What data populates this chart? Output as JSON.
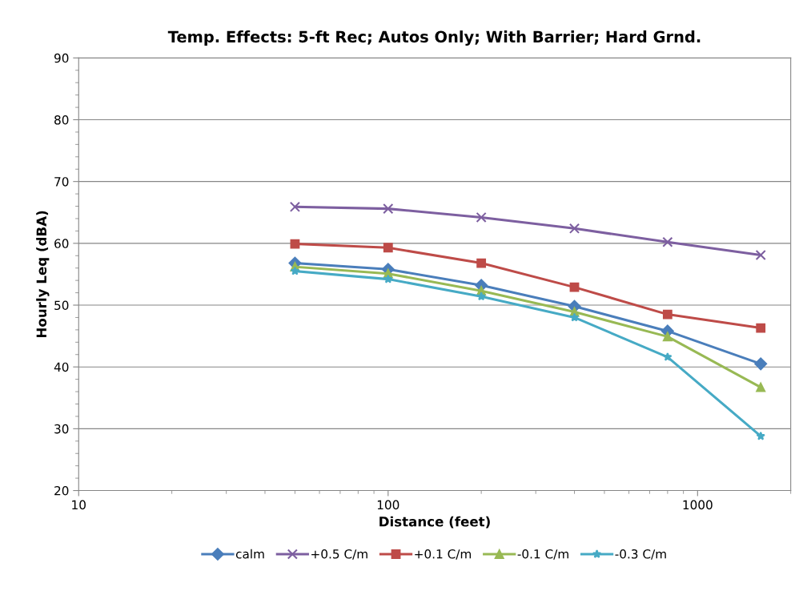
{
  "chart_data": {
    "type": "line",
    "title": "Temp. Effects: 5-ft Rec; Autos Only; With Barrier; Hard Grnd.",
    "xlabel": "Distance (feet)",
    "ylabel": "Hourly Leq (dBA)",
    "x": [
      50,
      100,
      200,
      400,
      800,
      1600
    ],
    "series": [
      {
        "name": "calm",
        "color": "#4a7ebb",
        "marker": "diamond",
        "values": [
          56.8,
          55.8,
          53.2,
          49.8,
          45.8,
          40.5
        ]
      },
      {
        "name": "+0.5 C/m",
        "color": "#7d5fa0",
        "marker": "cross",
        "values": [
          65.9,
          65.6,
          64.2,
          62.4,
          60.2,
          58.1
        ]
      },
      {
        "name": "+0.1 C/m",
        "color": "#be4b48",
        "marker": "square",
        "values": [
          59.9,
          59.3,
          56.8,
          52.9,
          48.5,
          46.3
        ]
      },
      {
        "name": "-0.1 C/m",
        "color": "#98b954",
        "marker": "triangle",
        "values": [
          56.2,
          55.1,
          52.3,
          48.9,
          44.9,
          36.7
        ]
      },
      {
        "name": "-0.3 C/m",
        "color": "#46aac5",
        "marker": "star",
        "values": [
          55.5,
          54.2,
          51.4,
          48.0,
          41.6,
          28.8
        ]
      }
    ],
    "log": "x",
    "xlim": [
      10,
      2000
    ],
    "xticks": [
      10,
      100,
      1000
    ],
    "ylim": [
      20,
      90
    ],
    "yticks": [
      20,
      30,
      40,
      50,
      60,
      70,
      80,
      90
    ],
    "grid": "y",
    "legend": "bottom"
  }
}
